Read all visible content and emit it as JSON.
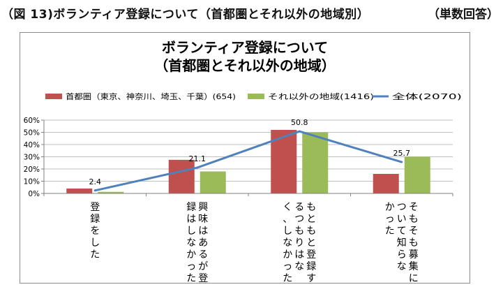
{
  "figure": {
    "caption": "（図 13)ボランティア登録について（首都圏とそれ以外の地域別）",
    "unit_note": "（単数回答）"
  },
  "colors": {
    "series1": "#c0504d",
    "series2": "#9bbb59",
    "series3": "#4f81bd",
    "grid": "#bfbfbf",
    "axis": "#808080"
  },
  "chart_data": {
    "type": "bar",
    "title": [
      "ボランティア登録について",
      "（首都圏とそれ以外の地域）"
    ],
    "categories": [
      [
        "登録をした"
      ],
      [
        "興味はあるが登",
        "録はしなかった"
      ],
      [
        "もともと登録す",
        "るつもりはな",
        "く、しなかった"
      ],
      [
        "そもそも募集に",
        "ついて知らな",
        "かった"
      ]
    ],
    "yticks": [
      "0%",
      "10%",
      "20%",
      "30%",
      "40%",
      "50%",
      "60%"
    ],
    "ylim": [
      0,
      60
    ],
    "grid": true,
    "legend_position": "top",
    "series": [
      {
        "name": "首都圏（東京、神奈川、埼玉、千葉）(654)",
        "type": "bar",
        "values": [
          4.0,
          27.5,
          52.0,
          16.0
        ]
      },
      {
        "name": "それ以外の地域(1416)",
        "type": "bar",
        "values": [
          1.3,
          18.0,
          50.0,
          30.0
        ]
      },
      {
        "name": "全体(2070)",
        "type": "line",
        "values": [
          2.4,
          21.1,
          50.8,
          25.7
        ]
      }
    ],
    "data_labels": [
      "2.4",
      "21.1",
      "50.8",
      "25.7"
    ]
  }
}
